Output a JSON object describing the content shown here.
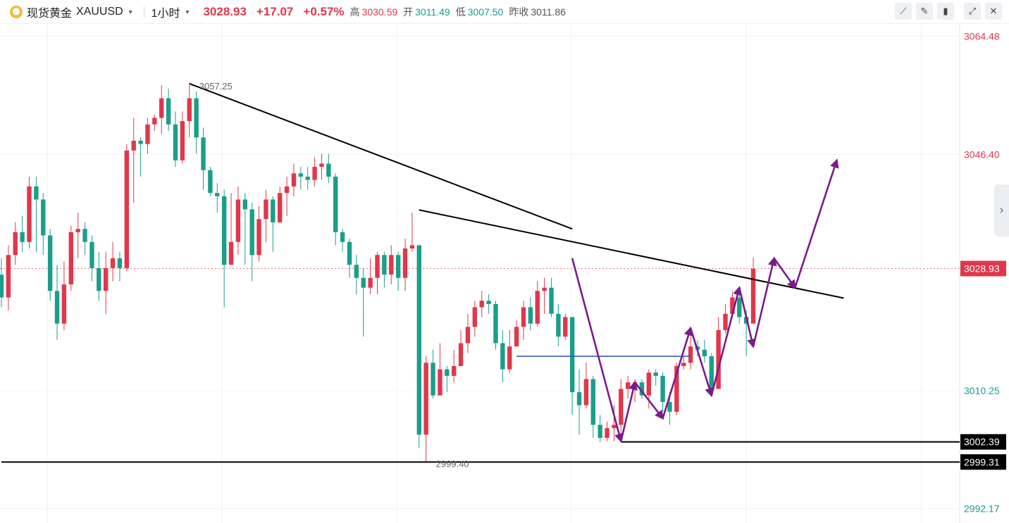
{
  "header": {
    "logo_icon": "gold-coin-icon",
    "symbol_name": "现货黄金",
    "symbol_code": "XAUUSD",
    "interval": "1小时",
    "last_price": "3028.93",
    "change": "+17.07",
    "change_pct": "+0.57%",
    "high_label": "高",
    "high_value": "3030.59",
    "open_label": "开",
    "open_value": "3011.49",
    "low_label": "低",
    "low_value": "3007.50",
    "prev_close_label": "昨收",
    "prev_close_value": "3011.86"
  },
  "toolbar": {
    "icons": [
      "line-tool-icon",
      "pencil-icon",
      "candlestick-style-icon",
      "expand-icon",
      "close-icon"
    ]
  },
  "colors": {
    "up": "#e0374b",
    "down": "#1a9e8a",
    "pattern": "#7b1a8c",
    "level": "#2b4fc4",
    "line": "#000000"
  },
  "chart_data": {
    "type": "candlestick",
    "symbol": "XAUUSD",
    "interval": "1小时",
    "y_ticks": [
      {
        "value": 3064.48,
        "label": "3064.48"
      },
      {
        "value": 3046.4,
        "label": "3046.40"
      },
      {
        "value": 3010.25,
        "label": "3010.25"
      },
      {
        "value": 2992.17,
        "label": "2992.17"
      }
    ],
    "ylim": [
      2991.8,
      3065.2
    ],
    "current_price": {
      "value": 3028.93,
      "label": "3028.93"
    },
    "markers": [
      {
        "value": 3002.39,
        "label": "3002.39"
      },
      {
        "value": 2999.31,
        "label": "2999.31"
      }
    ],
    "annotations": [
      {
        "label": "3057.25",
        "value": 3057.25,
        "bar": 27
      },
      {
        "label": "2999.40",
        "value": 2999.4,
        "bar": 61
      }
    ],
    "candles": [
      [
        3028.0,
        3024.5,
        3030.5,
        3023.0
      ],
      [
        3024.5,
        3031.0,
        3032.5,
        3022.5
      ],
      [
        3031.0,
        3034.5,
        3036.0,
        3029.5
      ],
      [
        3034.5,
        3033.0,
        3037.0,
        3031.5
      ],
      [
        3033.0,
        3041.5,
        3043.0,
        3032.0
      ],
      [
        3041.5,
        3039.5,
        3043.0,
        3031.5
      ],
      [
        3039.5,
        3034.0,
        3040.5,
        3031.0
      ],
      [
        3034.0,
        3025.5,
        3035.0,
        3024.0
      ],
      [
        3025.5,
        3020.5,
        3029.5,
        3018.0
      ],
      [
        3020.5,
        3026.5,
        3030.0,
        3019.5
      ],
      [
        3026.5,
        3034.5,
        3035.5,
        3025.5
      ],
      [
        3034.5,
        3035.0,
        3037.5,
        3030.5
      ],
      [
        3035.0,
        3033.0,
        3036.0,
        3031.0
      ],
      [
        3033.0,
        3029.0,
        3034.0,
        3027.0
      ],
      [
        3029.0,
        3025.5,
        3031.5,
        3024.0
      ],
      [
        3025.5,
        3029.0,
        3031.5,
        3022.0
      ],
      [
        3029.0,
        3030.5,
        3033.0,
        3027.0
      ],
      [
        3030.5,
        3029.0,
        3031.5,
        3027.0
      ],
      [
        3029.0,
        3047.0,
        3048.0,
        3028.5
      ],
      [
        3047.0,
        3048.5,
        3052.0,
        3039.0
      ],
      [
        3048.5,
        3048.0,
        3049.0,
        3043.0
      ],
      [
        3048.0,
        3051.0,
        3052.0,
        3046.5
      ],
      [
        3051.0,
        3052.0,
        3052.5,
        3050.0
      ],
      [
        3052.0,
        3055.0,
        3057.0,
        3049.5
      ],
      [
        3055.0,
        3051.0,
        3056.5,
        3050.0
      ],
      [
        3051.0,
        3045.5,
        3053.0,
        3044.5
      ],
      [
        3045.5,
        3051.5,
        3053.0,
        3045.0
      ],
      [
        3051.5,
        3055.0,
        3057.25,
        3049.0
      ],
      [
        3055.0,
        3049.0,
        3056.0,
        3046.5
      ],
      [
        3049.0,
        3044.0,
        3050.5,
        3041.0
      ],
      [
        3044.0,
        3040.5,
        3044.5,
        3040.0
      ],
      [
        3040.5,
        3040.0,
        3042.0,
        3037.5
      ],
      [
        3040.0,
        3029.5,
        3041.0,
        3023.0
      ],
      [
        3029.5,
        3033.0,
        3040.5,
        3032.0
      ],
      [
        3033.0,
        3039.5,
        3041.5,
        3031.0
      ],
      [
        3039.5,
        3038.0,
        3040.5,
        3029.5
      ],
      [
        3038.0,
        3031.0,
        3039.0,
        3027.0
      ],
      [
        3031.0,
        3036.5,
        3038.5,
        3030.0
      ],
      [
        3036.5,
        3039.5,
        3041.0,
        3033.0
      ],
      [
        3039.5,
        3036.0,
        3040.0,
        3031.5
      ],
      [
        3036.0,
        3040.5,
        3041.5,
        3036.0
      ],
      [
        3040.5,
        3041.5,
        3043.0,
        3037.0
      ],
      [
        3041.5,
        3043.5,
        3045.0,
        3040.0
      ],
      [
        3043.5,
        3043.0,
        3044.5,
        3041.0
      ],
      [
        3043.0,
        3042.5,
        3044.5,
        3041.0
      ],
      [
        3042.5,
        3044.5,
        3046.0,
        3041.5
      ],
      [
        3044.5,
        3045.0,
        3046.5,
        3042.5
      ],
      [
        3045.0,
        3043.0,
        3046.5,
        3042.0
      ],
      [
        3043.0,
        3034.5,
        3043.5,
        3032.5
      ],
      [
        3034.5,
        3033.0,
        3035.0,
        3031.5
      ],
      [
        3033.0,
        3029.5,
        3033.5,
        3027.5
      ],
      [
        3029.5,
        3027.5,
        3031.0,
        3025.0
      ],
      [
        3027.5,
        3026.0,
        3029.0,
        3018.5
      ],
      [
        3026.0,
        3027.5,
        3030.5,
        3025.0
      ],
      [
        3027.5,
        3031.0,
        3031.5,
        3025.0
      ],
      [
        3031.0,
        3028.0,
        3031.5,
        3026.0
      ],
      [
        3028.0,
        3031.0,
        3032.5,
        3026.5
      ],
      [
        3031.0,
        3027.5,
        3031.5,
        3025.5
      ],
      [
        3027.5,
        3032.0,
        3033.5,
        3025.5
      ],
      [
        3032.0,
        3032.5,
        3037.5,
        3031.5
      ],
      [
        3032.5,
        3003.5,
        3032.5,
        3001.5
      ],
      [
        3003.5,
        3014.5,
        3015.5,
        2999.4
      ],
      [
        3014.5,
        3009.5,
        3016.5,
        3009.0
      ],
      [
        3009.5,
        3013.5,
        3017.5,
        3009.5
      ],
      [
        3013.5,
        3012.5,
        3014.0,
        3010.0
      ],
      [
        3012.5,
        3014.0,
        3016.5,
        3011.5
      ],
      [
        3014.0,
        3017.5,
        3019.5,
        3014.0
      ],
      [
        3017.5,
        3020.0,
        3022.0,
        3016.0
      ],
      [
        3020.0,
        3023.0,
        3024.0,
        3018.5
      ],
      [
        3023.0,
        3024.0,
        3025.5,
        3021.5
      ],
      [
        3024.0,
        3023.5,
        3025.0,
        3022.0
      ],
      [
        3023.5,
        3017.5,
        3024.0,
        3016.5
      ],
      [
        3017.5,
        3013.5,
        3019.5,
        3011.5
      ],
      [
        3013.5,
        3017.0,
        3019.5,
        3013.0
      ],
      [
        3017.0,
        3020.0,
        3021.0,
        3017.5
      ],
      [
        3020.0,
        3023.0,
        3024.0,
        3018.0
      ],
      [
        3023.0,
        3020.5,
        3024.5,
        3019.5
      ],
      [
        3020.5,
        3025.5,
        3027.0,
        3020.0
      ],
      [
        3025.5,
        3026.0,
        3027.5,
        3022.0
      ],
      [
        3026.0,
        3022.0,
        3027.5,
        3021.5
      ],
      [
        3022.0,
        3018.5,
        3023.5,
        3017.0
      ],
      [
        3018.5,
        3021.5,
        3022.0,
        3018.0
      ],
      [
        3021.5,
        3010.0,
        3021.5,
        3006.5
      ],
      [
        3010.0,
        3008.0,
        3013.5,
        3003.5
      ],
      [
        3008.0,
        3012.0,
        3014.5,
        3007.5
      ],
      [
        3012.0,
        3005.0,
        3012.5,
        3003.0
      ],
      [
        3005.0,
        3003.0,
        3006.5,
        3002.39
      ],
      [
        3003.0,
        3004.5,
        3005.5,
        3002.5
      ],
      [
        3004.5,
        3005.0,
        3008.0,
        3002.5
      ],
      [
        3005.0,
        3010.5,
        3012.0,
        3003.0
      ],
      [
        3010.5,
        3011.5,
        3012.5,
        3009.0
      ],
      [
        3011.5,
        3011.5,
        3012.0,
        3008.5
      ],
      [
        3011.5,
        3009.5,
        3012.0,
        3009.0
      ],
      [
        3009.5,
        3013.0,
        3013.5,
        3007.5
      ],
      [
        3013.0,
        3012.5,
        3013.5,
        3011.0
      ],
      [
        3012.5,
        3008.5,
        3013.0,
        3007.0
      ],
      [
        3008.5,
        3007.0,
        3010.0,
        3005.0
      ],
      [
        3007.0,
        3014.0,
        3014.5,
        3006.5
      ],
      [
        3014.0,
        3014.5,
        3015.5,
        3013.5
      ],
      [
        3014.5,
        3017.0,
        3018.5,
        3013.5
      ],
      [
        3017.0,
        3016.5,
        3018.0,
        3015.5
      ],
      [
        3016.5,
        3015.5,
        3018.0,
        3014.5
      ],
      [
        3015.5,
        3010.5,
        3016.0,
        3010.0
      ],
      [
        3010.5,
        3019.5,
        3021.5,
        3010.5
      ],
      [
        3019.5,
        3022.0,
        3023.5,
        3019.0
      ],
      [
        3022.0,
        3024.5,
        3025.5,
        3022.0
      ],
      [
        3024.5,
        3021.5,
        3025.0,
        3020.5
      ],
      [
        3021.5,
        3020.5,
        3022.5,
        3015.5
      ],
      [
        3020.5,
        3028.9,
        3030.59,
        3020.5
      ]
    ],
    "trend_lines": [
      {
        "from": [
          27,
          3057.25
        ],
        "to": [
          82,
          3035.0
        ]
      },
      {
        "from": [
          60,
          3037.9
        ],
        "to": [
          121,
          3024.4
        ]
      }
    ],
    "level_lines": [
      {
        "from": 74,
        "to": 99,
        "value": 3015.5,
        "color": "#2b4fc4"
      },
      {
        "from": 89,
        "to": 135,
        "value": 3002.39,
        "color": "#000000"
      },
      {
        "from": 0,
        "to": 135,
        "value": 2999.31,
        "color": "#000000"
      }
    ],
    "pattern_path": [
      [
        82,
        3030.5
      ],
      [
        89,
        3002.5
      ],
      [
        91,
        3011.5
      ],
      [
        95,
        3006.0
      ],
      [
        99,
        3019.8
      ],
      [
        102,
        3009.5
      ],
      [
        106,
        3026.0
      ],
      [
        108,
        3017.0
      ],
      [
        111,
        3030.5
      ],
      [
        114,
        3026.0
      ],
      [
        120,
        3045.5
      ]
    ]
  }
}
